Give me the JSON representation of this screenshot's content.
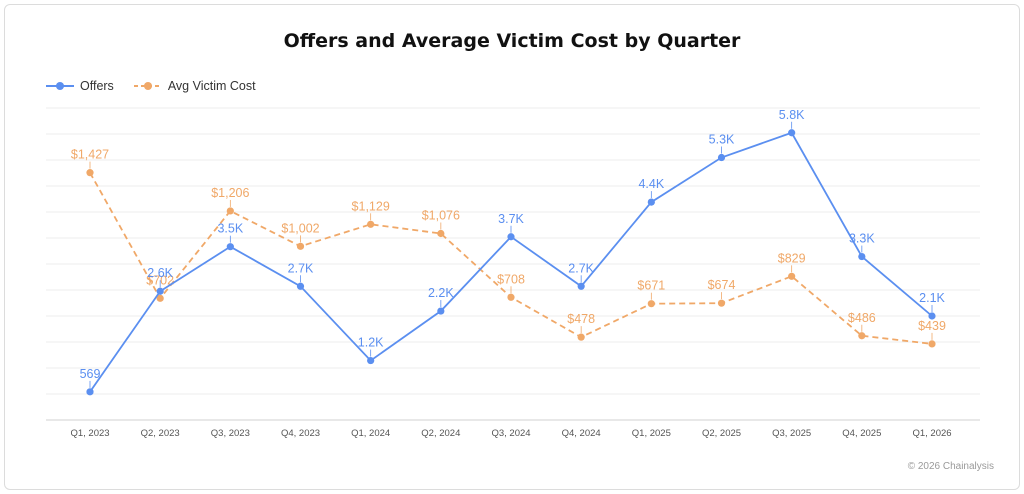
{
  "footer": {
    "copyright": "© 2026 Chainalysis"
  },
  "legend": {
    "offers": "Offers",
    "cost": "Avg Victim Cost"
  },
  "colors": {
    "offers": "#5b8ff0",
    "cost": "#f0a868",
    "grid": "#ececec",
    "tick": "#555555"
  },
  "chart_data": {
    "type": "line",
    "title": "Offers and Average Victim Cost by Quarter",
    "categories": [
      "Q1, 2023",
      "Q2, 2023",
      "Q3, 2023",
      "Q4, 2023",
      "Q1, 2024",
      "Q2, 2024",
      "Q3, 2024",
      "Q4, 2024",
      "Q1, 2025",
      "Q2, 2025",
      "Q3, 2025",
      "Q4, 2025",
      "Q1, 2026"
    ],
    "series": [
      {
        "name": "Offers",
        "values": [
          569,
          2600,
          3500,
          2700,
          1200,
          2200,
          3700,
          2700,
          4400,
          5300,
          5800,
          3300,
          2100
        ],
        "labels": [
          "569",
          "2.6K",
          "3.5K",
          "2.7K",
          "1.2K",
          "2.2K",
          "3.7K",
          "2.7K",
          "4.4K",
          "5.3K",
          "5.8K",
          "3.3K",
          "2.1K"
        ],
        "ylim": [
          0,
          6300
        ]
      },
      {
        "name": "Avg Victim Cost",
        "values": [
          1427,
          702,
          1206,
          1002,
          1129,
          1076,
          708,
          478,
          671,
          674,
          829,
          486,
          439
        ],
        "labels": [
          "$1,427",
          "$702",
          "$1,206",
          "$1,002",
          "$1,129",
          "$1,076",
          "$708",
          "$478",
          "$671",
          "$674",
          "$829",
          "$486",
          "$439"
        ],
        "ylim": [
          0,
          1800
        ]
      }
    ],
    "grid": true,
    "legend_position": "top-left"
  }
}
